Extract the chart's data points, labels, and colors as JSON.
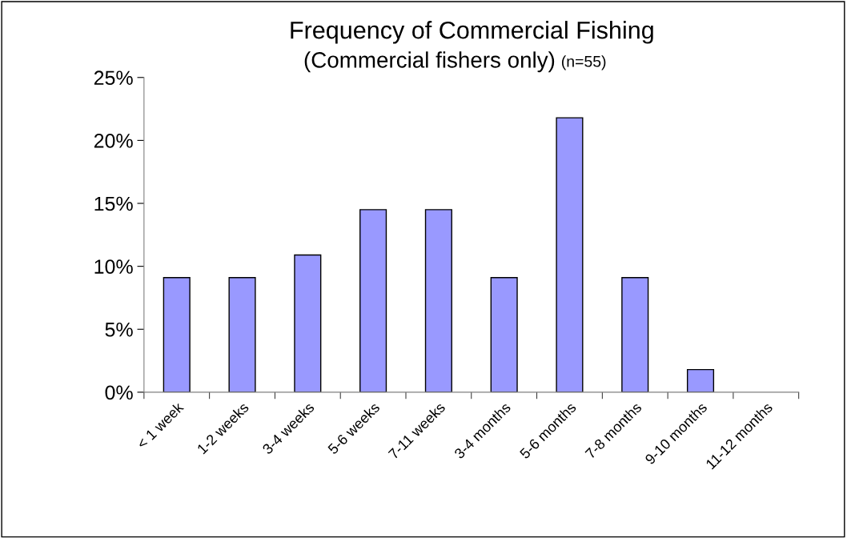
{
  "chart_data": {
    "type": "bar",
    "title": "Frequency of Commercial Fishing",
    "subtitle": "(Commercial fishers only)",
    "annotations": [
      "(n=55)"
    ],
    "categories": [
      "< 1 week",
      "1-2 weeks",
      "3-4 weeks",
      "5-6 weeks",
      "7-11 weeks",
      "3-4 months",
      "5-6 months",
      "7-8 months",
      "9-10 months",
      "11-12 months"
    ],
    "values": [
      9.1,
      9.1,
      10.9,
      14.5,
      14.5,
      9.1,
      21.8,
      9.1,
      1.8,
      0
    ],
    "color": "#9999ff",
    "ylim": [
      0,
      25
    ],
    "yticks": [
      {
        "value": 0,
        "label": "0%"
      },
      {
        "value": 5,
        "label": "5%"
      },
      {
        "value": 10,
        "label": "10%"
      },
      {
        "value": 15,
        "label": "15%"
      },
      {
        "value": 20,
        "label": "20%"
      },
      {
        "value": 25,
        "label": "25%"
      }
    ],
    "grid": false,
    "legend": false
  }
}
